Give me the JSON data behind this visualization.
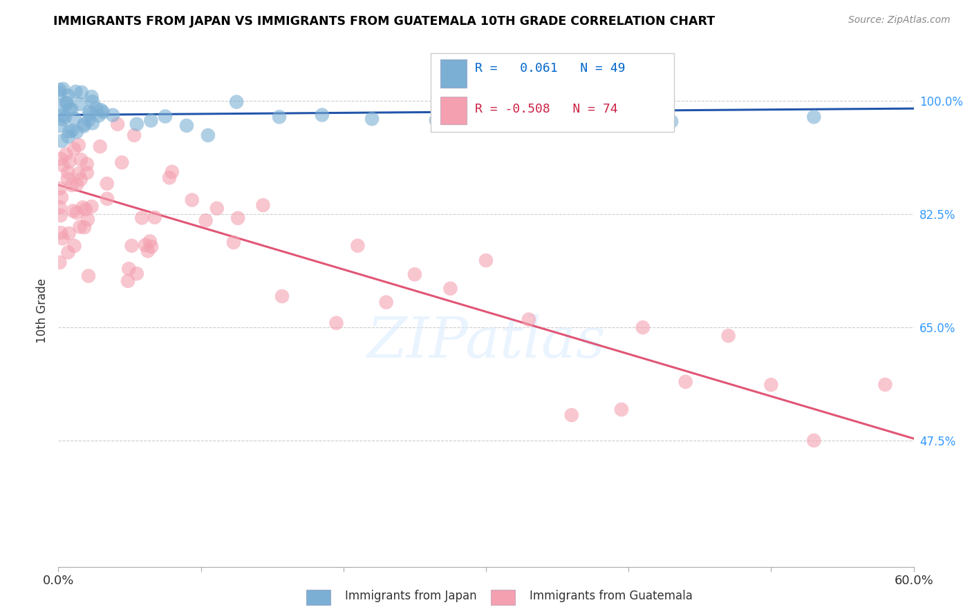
{
  "title": "IMMIGRANTS FROM JAPAN VS IMMIGRANTS FROM GUATEMALA 10TH GRADE CORRELATION CHART",
  "source": "Source: ZipAtlas.com",
  "ylabel": "10th Grade",
  "ytick_labels": [
    "100.0%",
    "82.5%",
    "65.0%",
    "47.5%"
  ],
  "ytick_values": [
    1.0,
    0.825,
    0.65,
    0.475
  ],
  "xmin": 0.0,
  "xmax": 0.6,
  "ymin": 0.28,
  "ymax": 1.07,
  "blue_R": 0.061,
  "blue_N": 49,
  "pink_R": -0.508,
  "pink_N": 74,
  "blue_color": "#7BAFD4",
  "pink_color": "#F4A0B0",
  "blue_line_color": "#2255AA",
  "pink_line_color": "#E05575",
  "watermark": "ZIPatlas",
  "legend_R_blue_color": "#0066CC",
  "legend_R_pink_color": "#CC2244",
  "blue_line_y0": 0.978,
  "blue_line_y1": 0.988,
  "pink_line_y0": 0.87,
  "pink_line_y1": 0.478
}
